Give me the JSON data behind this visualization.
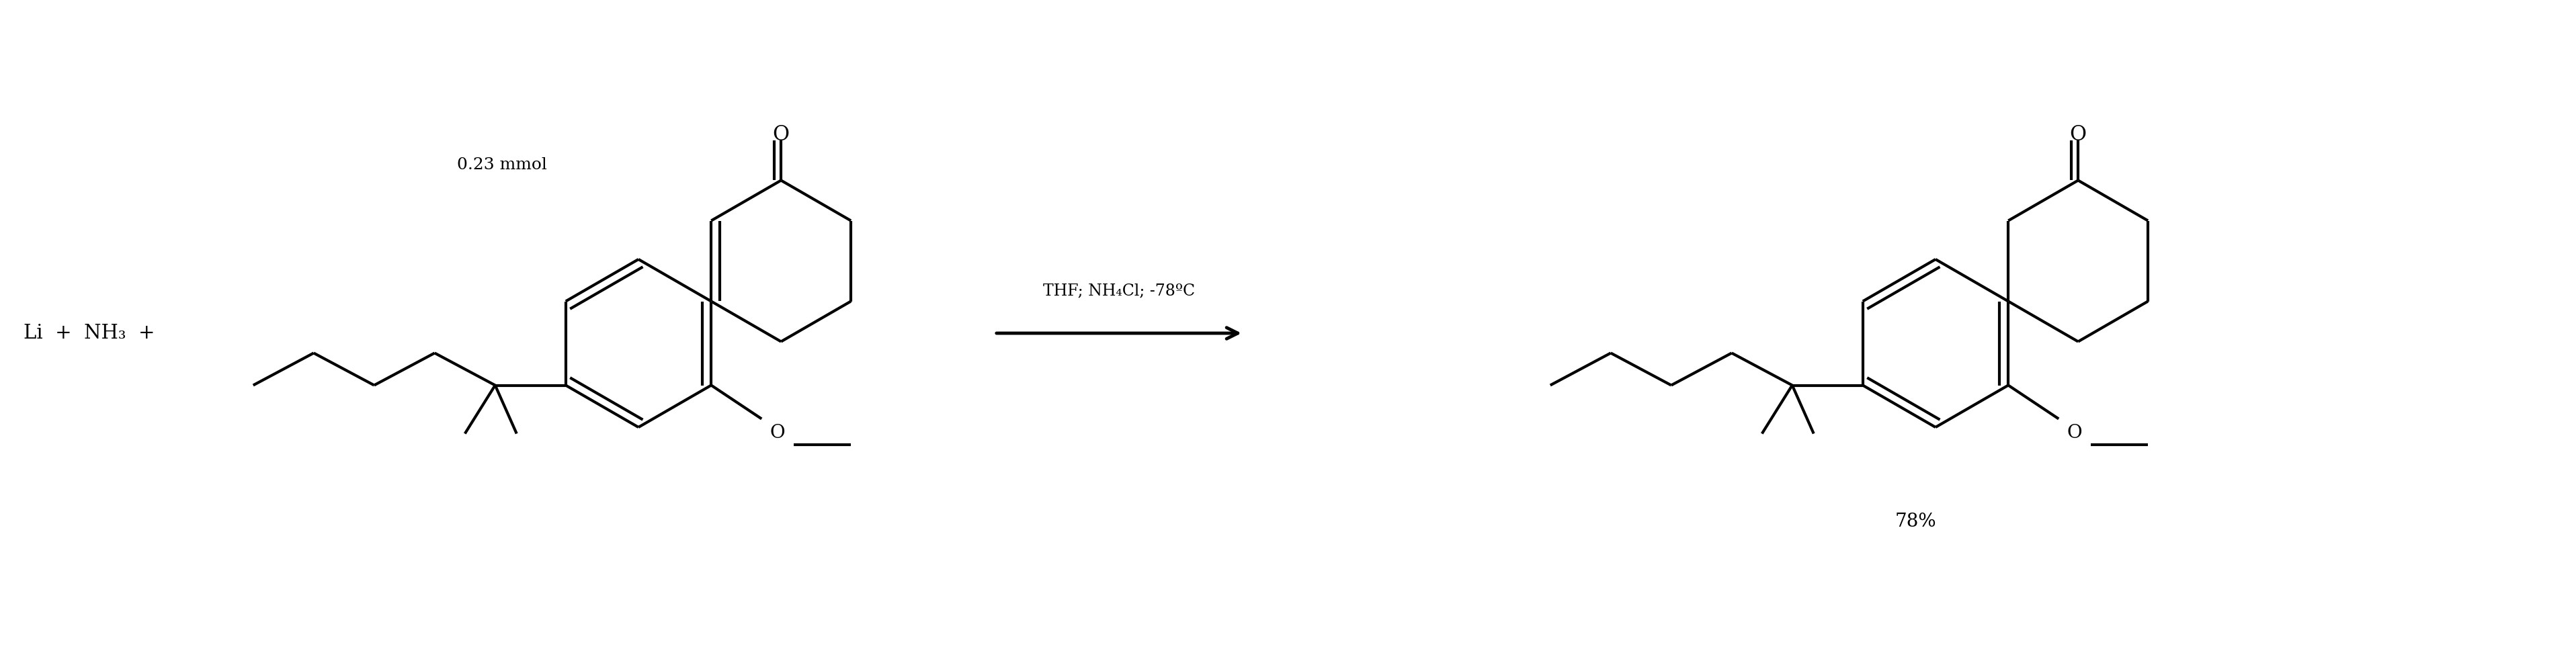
{
  "background_color": "#ffffff",
  "line_color": "#000000",
  "lw": 3.0,
  "fig_width": 38.33,
  "fig_height": 9.81,
  "text_mmol": "0.23 mmol",
  "text_reagents": "Li  +  NH₃  +",
  "text_arrow": "THF; NH₄Cl; -78ºC",
  "text_yield": "78%",
  "fs": 20
}
